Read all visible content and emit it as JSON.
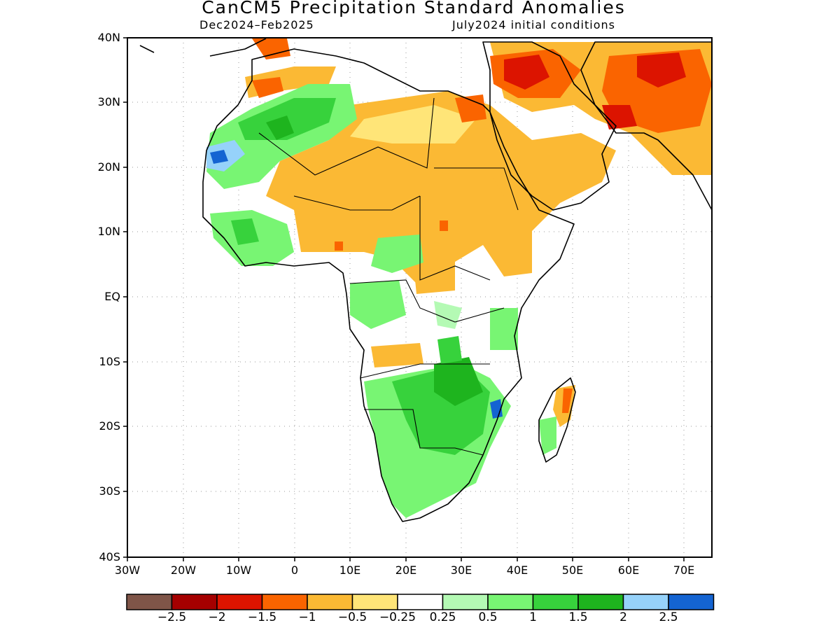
{
  "title": "CanCM5 Precipitation Standard Anomalies",
  "period": "Dec2024–Feb2025",
  "initial_conditions": "July2024 initial conditions",
  "lat_labels": [
    "40N",
    "30N",
    "20N",
    "10N",
    "EQ",
    "10S",
    "20S",
    "30S",
    "40S"
  ],
  "lon_labels": [
    "30W",
    "20W",
    "10W",
    "0",
    "10E",
    "20E",
    "30E",
    "40E",
    "50E",
    "60E",
    "70E"
  ],
  "colorbar": {
    "colors": [
      "#7f5548",
      "#a50000",
      "#dc1400",
      "#fa6400",
      "#fbb934",
      "#ffe578",
      "#ffffff",
      "#b4fab4",
      "#78f573",
      "#37d23c",
      "#1eb41e",
      "#96d2fa",
      "#1464d2"
    ],
    "labels": [
      "−2.5",
      "−2",
      "−1.5",
      "−1",
      "−0.5",
      "−0.25",
      "0.25",
      "0.5",
      "1",
      "1.5",
      "2",
      "2.5"
    ]
  }
}
